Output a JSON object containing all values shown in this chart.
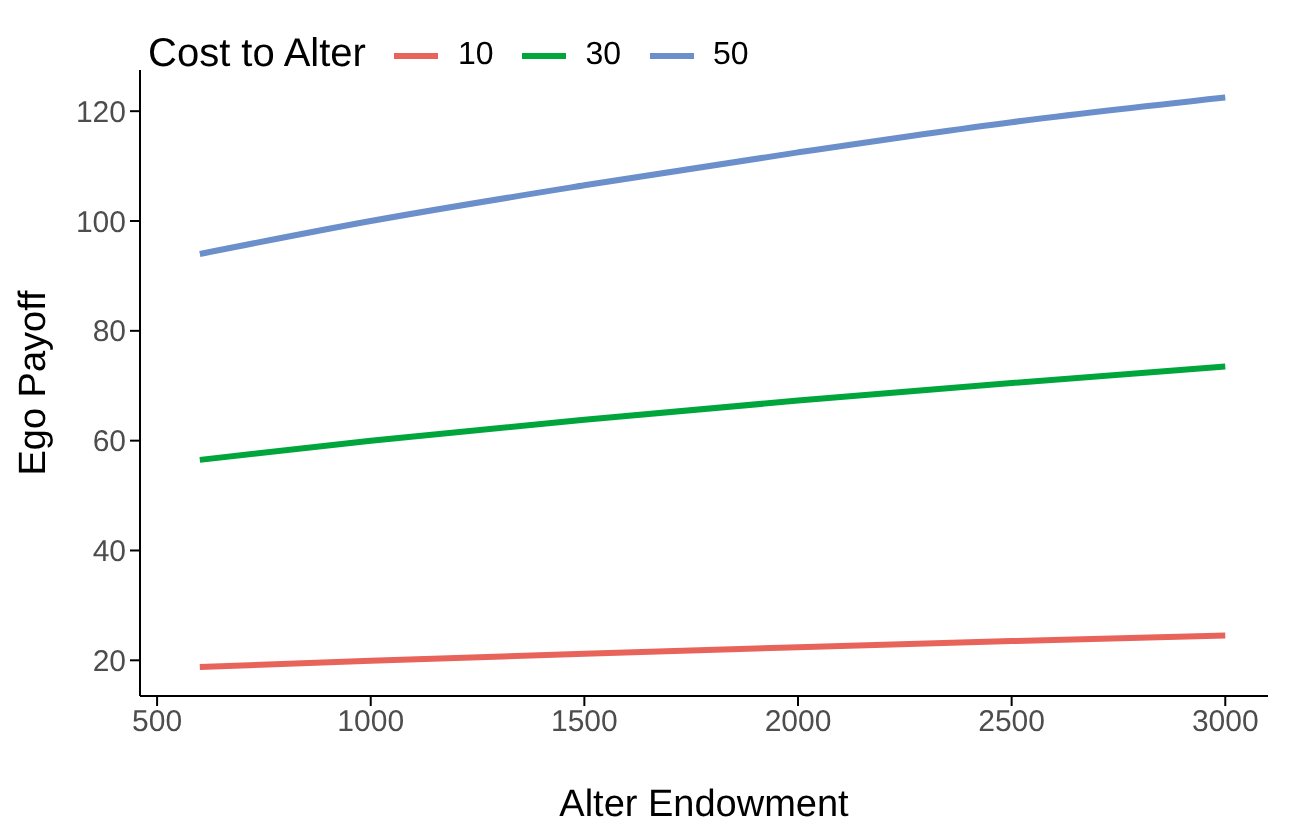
{
  "chart_data": {
    "type": "line",
    "xlabel": "Alter Endowment",
    "ylabel": "Ego Payoff",
    "legend_title": "Cost to Alter",
    "legend": "top left",
    "grid": false,
    "marker": "none",
    "line_style": "solid",
    "x": [
      600,
      1000,
      1500,
      2000,
      2500,
      3000
    ],
    "series": [
      {
        "name": "10",
        "color": "#e8645a",
        "values": [
          18.8,
          19.9,
          21.2,
          22.4,
          23.5,
          24.5
        ]
      },
      {
        "name": "30",
        "color": "#00a63c",
        "values": [
          56.5,
          60,
          63.8,
          67.3,
          70.5,
          73.5
        ]
      },
      {
        "name": "50",
        "color": "#6a8fcb",
        "values": [
          94,
          100,
          106.5,
          112.5,
          118,
          122.5
        ]
      }
    ],
    "xlim": [
      460,
      3100
    ],
    "xticks": [
      500,
      1000,
      1500,
      2000,
      2500,
      3000
    ],
    "ylim": [
      13.5,
      127.5
    ],
    "yticks": [
      20,
      40,
      60,
      80,
      100,
      120
    ]
  }
}
